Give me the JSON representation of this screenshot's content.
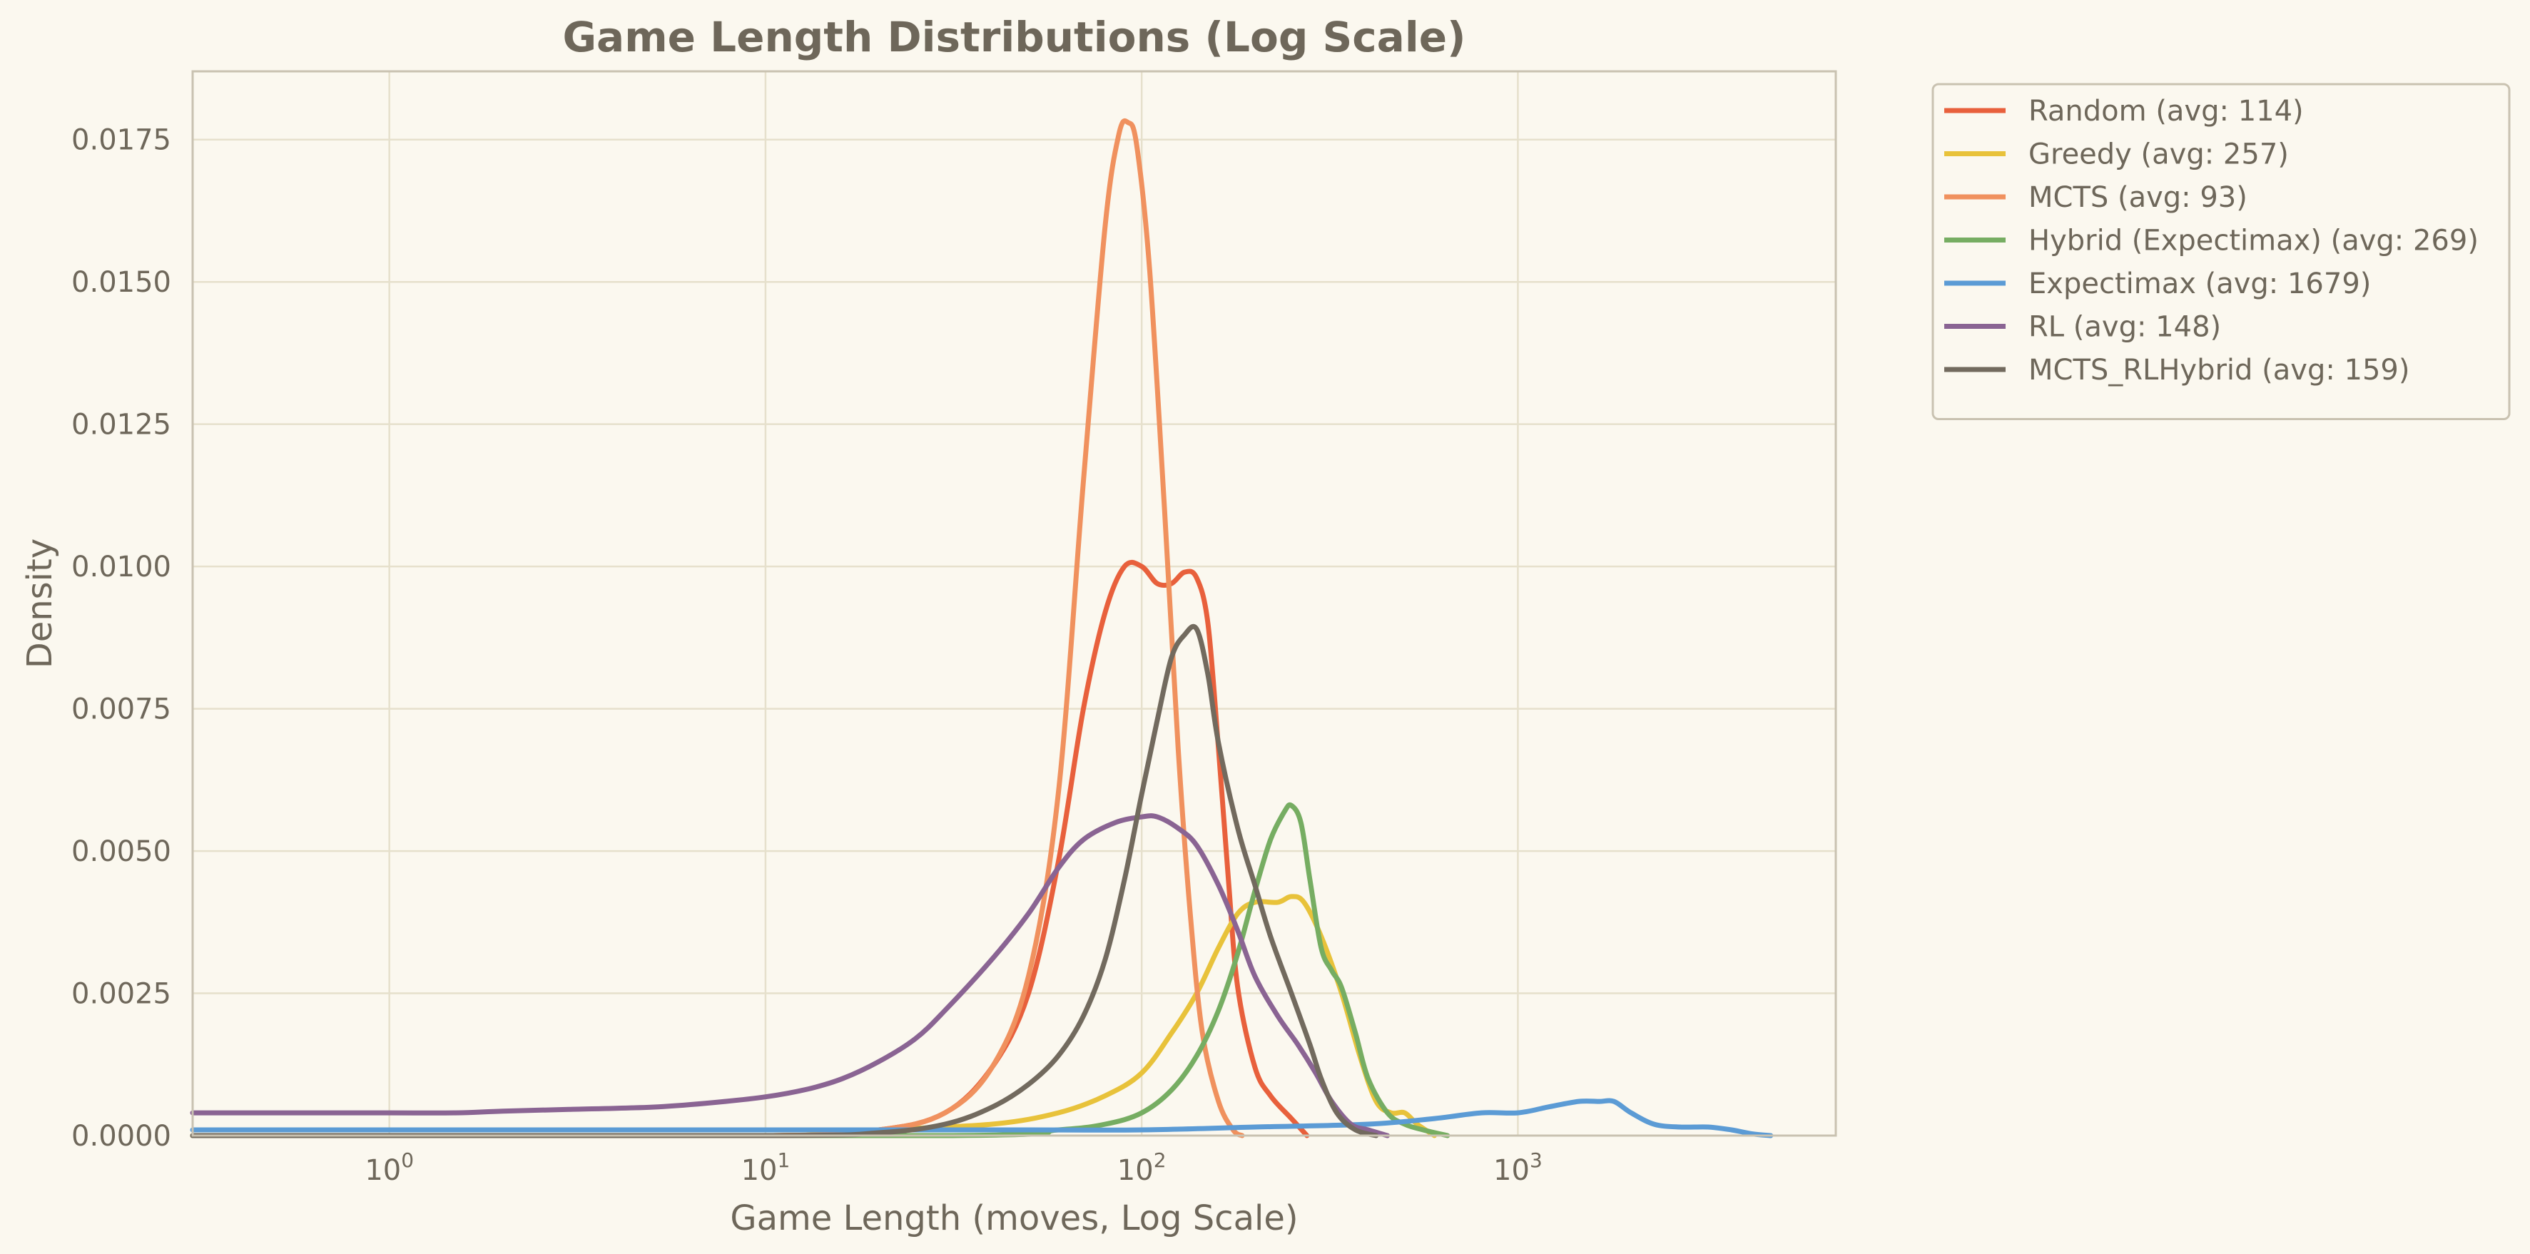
{
  "chart_data": {
    "type": "line",
    "title": "Game Length Distributions (Log Scale)",
    "xlabel": "Game Length (moves, Log Scale)",
    "ylabel": "Density",
    "xscale": "log",
    "xlim": [
      0.3,
      7000
    ],
    "ylim": [
      0,
      0.0187
    ],
    "grid": true,
    "legend_position": "outside-top-right",
    "x_ticks": [
      {
        "value": 1,
        "base": "10",
        "exp": "0"
      },
      {
        "value": 10,
        "base": "10",
        "exp": "1"
      },
      {
        "value": 100,
        "base": "10",
        "exp": "2"
      },
      {
        "value": 1000,
        "base": "10",
        "exp": "3"
      }
    ],
    "y_ticks": [
      {
        "value": 0,
        "label": "0.0000"
      },
      {
        "value": 0.0025,
        "label": "0.0025"
      },
      {
        "value": 0.005,
        "label": "0.0050"
      },
      {
        "value": 0.0075,
        "label": "0.0075"
      },
      {
        "value": 0.01,
        "label": "0.0100"
      },
      {
        "value": 0.0125,
        "label": "0.0125"
      },
      {
        "value": 0.015,
        "label": "0.0150"
      },
      {
        "value": 0.0175,
        "label": "0.0175"
      }
    ],
    "series": [
      {
        "name": "Random (avg: 114)",
        "color": "#e8603c",
        "points": [
          [
            0.3,
            0
          ],
          [
            10,
            0
          ],
          [
            20,
            0.0001
          ],
          [
            30,
            0.0004
          ],
          [
            40,
            0.0012
          ],
          [
            50,
            0.0025
          ],
          [
            60,
            0.0048
          ],
          [
            70,
            0.0075
          ],
          [
            80,
            0.0092
          ],
          [
            90,
            0.01
          ],
          [
            100,
            0.01
          ],
          [
            110,
            0.0097
          ],
          [
            120,
            0.0097
          ],
          [
            130,
            0.0099
          ],
          [
            140,
            0.0098
          ],
          [
            150,
            0.009
          ],
          [
            160,
            0.0068
          ],
          [
            170,
            0.0045
          ],
          [
            180,
            0.0026
          ],
          [
            200,
            0.0012
          ],
          [
            220,
            0.0007
          ],
          [
            250,
            0.0003
          ],
          [
            275,
            0
          ]
        ]
      },
      {
        "name": "Greedy (avg: 257)",
        "color": "#e8c23a",
        "points": [
          [
            0.3,
            0
          ],
          [
            10,
            0
          ],
          [
            20,
            0.0001
          ],
          [
            40,
            0.0002
          ],
          [
            60,
            0.0004
          ],
          [
            80,
            0.0007
          ],
          [
            100,
            0.0011
          ],
          [
            120,
            0.0018
          ],
          [
            140,
            0.0025
          ],
          [
            160,
            0.0033
          ],
          [
            180,
            0.0039
          ],
          [
            200,
            0.0041
          ],
          [
            230,
            0.0041
          ],
          [
            250,
            0.0042
          ],
          [
            270,
            0.0041
          ],
          [
            300,
            0.0035
          ],
          [
            340,
            0.0025
          ],
          [
            380,
            0.0014
          ],
          [
            420,
            0.0006
          ],
          [
            460,
            0.0004
          ],
          [
            500,
            0.0004
          ],
          [
            540,
            0.0002
          ],
          [
            600,
            0
          ]
        ]
      },
      {
        "name": "MCTS (avg: 93)",
        "color": "#f0915e",
        "points": [
          [
            0.3,
            0
          ],
          [
            10,
            0
          ],
          [
            20,
            0.0001
          ],
          [
            30,
            0.0004
          ],
          [
            40,
            0.0012
          ],
          [
            50,
            0.0028
          ],
          [
            60,
            0.006
          ],
          [
            70,
            0.0115
          ],
          [
            80,
            0.016
          ],
          [
            87,
            0.0176
          ],
          [
            92,
            0.0178
          ],
          [
            97,
            0.0174
          ],
          [
            105,
            0.0152
          ],
          [
            115,
            0.011
          ],
          [
            125,
            0.0068
          ],
          [
            135,
            0.0038
          ],
          [
            145,
            0.0018
          ],
          [
            160,
            0.0006
          ],
          [
            175,
            0.0001
          ],
          [
            185,
            0
          ]
        ]
      },
      {
        "name": "Hybrid (Expectimax) (avg: 269)",
        "color": "#76ad62",
        "points": [
          [
            0.3,
            0
          ],
          [
            30,
            0
          ],
          [
            60,
            0.0001
          ],
          [
            80,
            0.0002
          ],
          [
            100,
            0.0004
          ],
          [
            120,
            0.0008
          ],
          [
            140,
            0.0014
          ],
          [
            160,
            0.0022
          ],
          [
            180,
            0.0032
          ],
          [
            200,
            0.0043
          ],
          [
            220,
            0.0052
          ],
          [
            240,
            0.0057
          ],
          [
            250,
            0.0058
          ],
          [
            265,
            0.0055
          ],
          [
            280,
            0.0045
          ],
          [
            300,
            0.0033
          ],
          [
            320,
            0.0029
          ],
          [
            340,
            0.0026
          ],
          [
            370,
            0.0018
          ],
          [
            400,
            0.001
          ],
          [
            450,
            0.0004
          ],
          [
            500,
            0.0002
          ],
          [
            560,
            0.0001
          ],
          [
            650,
            0
          ]
        ]
      },
      {
        "name": "Expectimax (avg: 1679)",
        "color": "#5b9bd5",
        "points": [
          [
            0.3,
            0.0001
          ],
          [
            10,
            0.0001
          ],
          [
            50,
            0.0001
          ],
          [
            100,
            0.0001
          ],
          [
            200,
            0.00015
          ],
          [
            400,
            0.0002
          ],
          [
            600,
            0.0003
          ],
          [
            800,
            0.0004
          ],
          [
            1000,
            0.0004
          ],
          [
            1200,
            0.0005
          ],
          [
            1450,
            0.0006
          ],
          [
            1650,
            0.0006
          ],
          [
            1800,
            0.0006
          ],
          [
            2000,
            0.0004
          ],
          [
            2300,
            0.0002
          ],
          [
            2700,
            0.00015
          ],
          [
            3200,
            0.00015
          ],
          [
            3700,
            0.0001
          ],
          [
            4200,
            3e-05
          ],
          [
            4700,
            0
          ]
        ]
      },
      {
        "name": "RL (avg: 148)",
        "color": "#8a6493",
        "points": [
          [
            0.3,
            0.0004
          ],
          [
            0.5,
            0.0004
          ],
          [
            1,
            0.0004
          ],
          [
            1.5,
            0.0004
          ],
          [
            2,
            0.00043
          ],
          [
            3,
            0.00046
          ],
          [
            5,
            0.0005
          ],
          [
            7,
            0.00057
          ],
          [
            10,
            0.00068
          ],
          [
            13,
            0.00082
          ],
          [
            16,
            0.001
          ],
          [
            20,
            0.0013
          ],
          [
            25,
            0.0017
          ],
          [
            30,
            0.0022
          ],
          [
            40,
            0.0031
          ],
          [
            50,
            0.0039
          ],
          [
            60,
            0.0047
          ],
          [
            70,
            0.0052
          ],
          [
            85,
            0.0055
          ],
          [
            100,
            0.0056
          ],
          [
            110,
            0.0056
          ],
          [
            125,
            0.0054
          ],
          [
            140,
            0.0051
          ],
          [
            160,
            0.0044
          ],
          [
            180,
            0.0036
          ],
          [
            200,
            0.0028
          ],
          [
            230,
            0.0021
          ],
          [
            260,
            0.0016
          ],
          [
            290,
            0.0011
          ],
          [
            320,
            0.0006
          ],
          [
            360,
            0.0002
          ],
          [
            400,
            0.0001
          ],
          [
            450,
            0
          ]
        ]
      },
      {
        "name": "MCTS_RLHybrid (avg: 159)",
        "color": "#726a5e",
        "points": [
          [
            0.3,
            0
          ],
          [
            10,
            0
          ],
          [
            20,
            5e-05
          ],
          [
            30,
            0.0002
          ],
          [
            40,
            0.0005
          ],
          [
            50,
            0.0009
          ],
          [
            60,
            0.0014
          ],
          [
            70,
            0.0021
          ],
          [
            80,
            0.0031
          ],
          [
            90,
            0.0045
          ],
          [
            100,
            0.006
          ],
          [
            110,
            0.0073
          ],
          [
            120,
            0.0084
          ],
          [
            130,
            0.0088
          ],
          [
            140,
            0.0089
          ],
          [
            150,
            0.0081
          ],
          [
            160,
            0.0069
          ],
          [
            180,
            0.0054
          ],
          [
            200,
            0.0044
          ],
          [
            220,
            0.0035
          ],
          [
            250,
            0.0025
          ],
          [
            280,
            0.0016
          ],
          [
            300,
            0.001
          ],
          [
            330,
            0.0004
          ],
          [
            370,
            0.0001
          ],
          [
            420,
            0
          ]
        ]
      }
    ]
  }
}
